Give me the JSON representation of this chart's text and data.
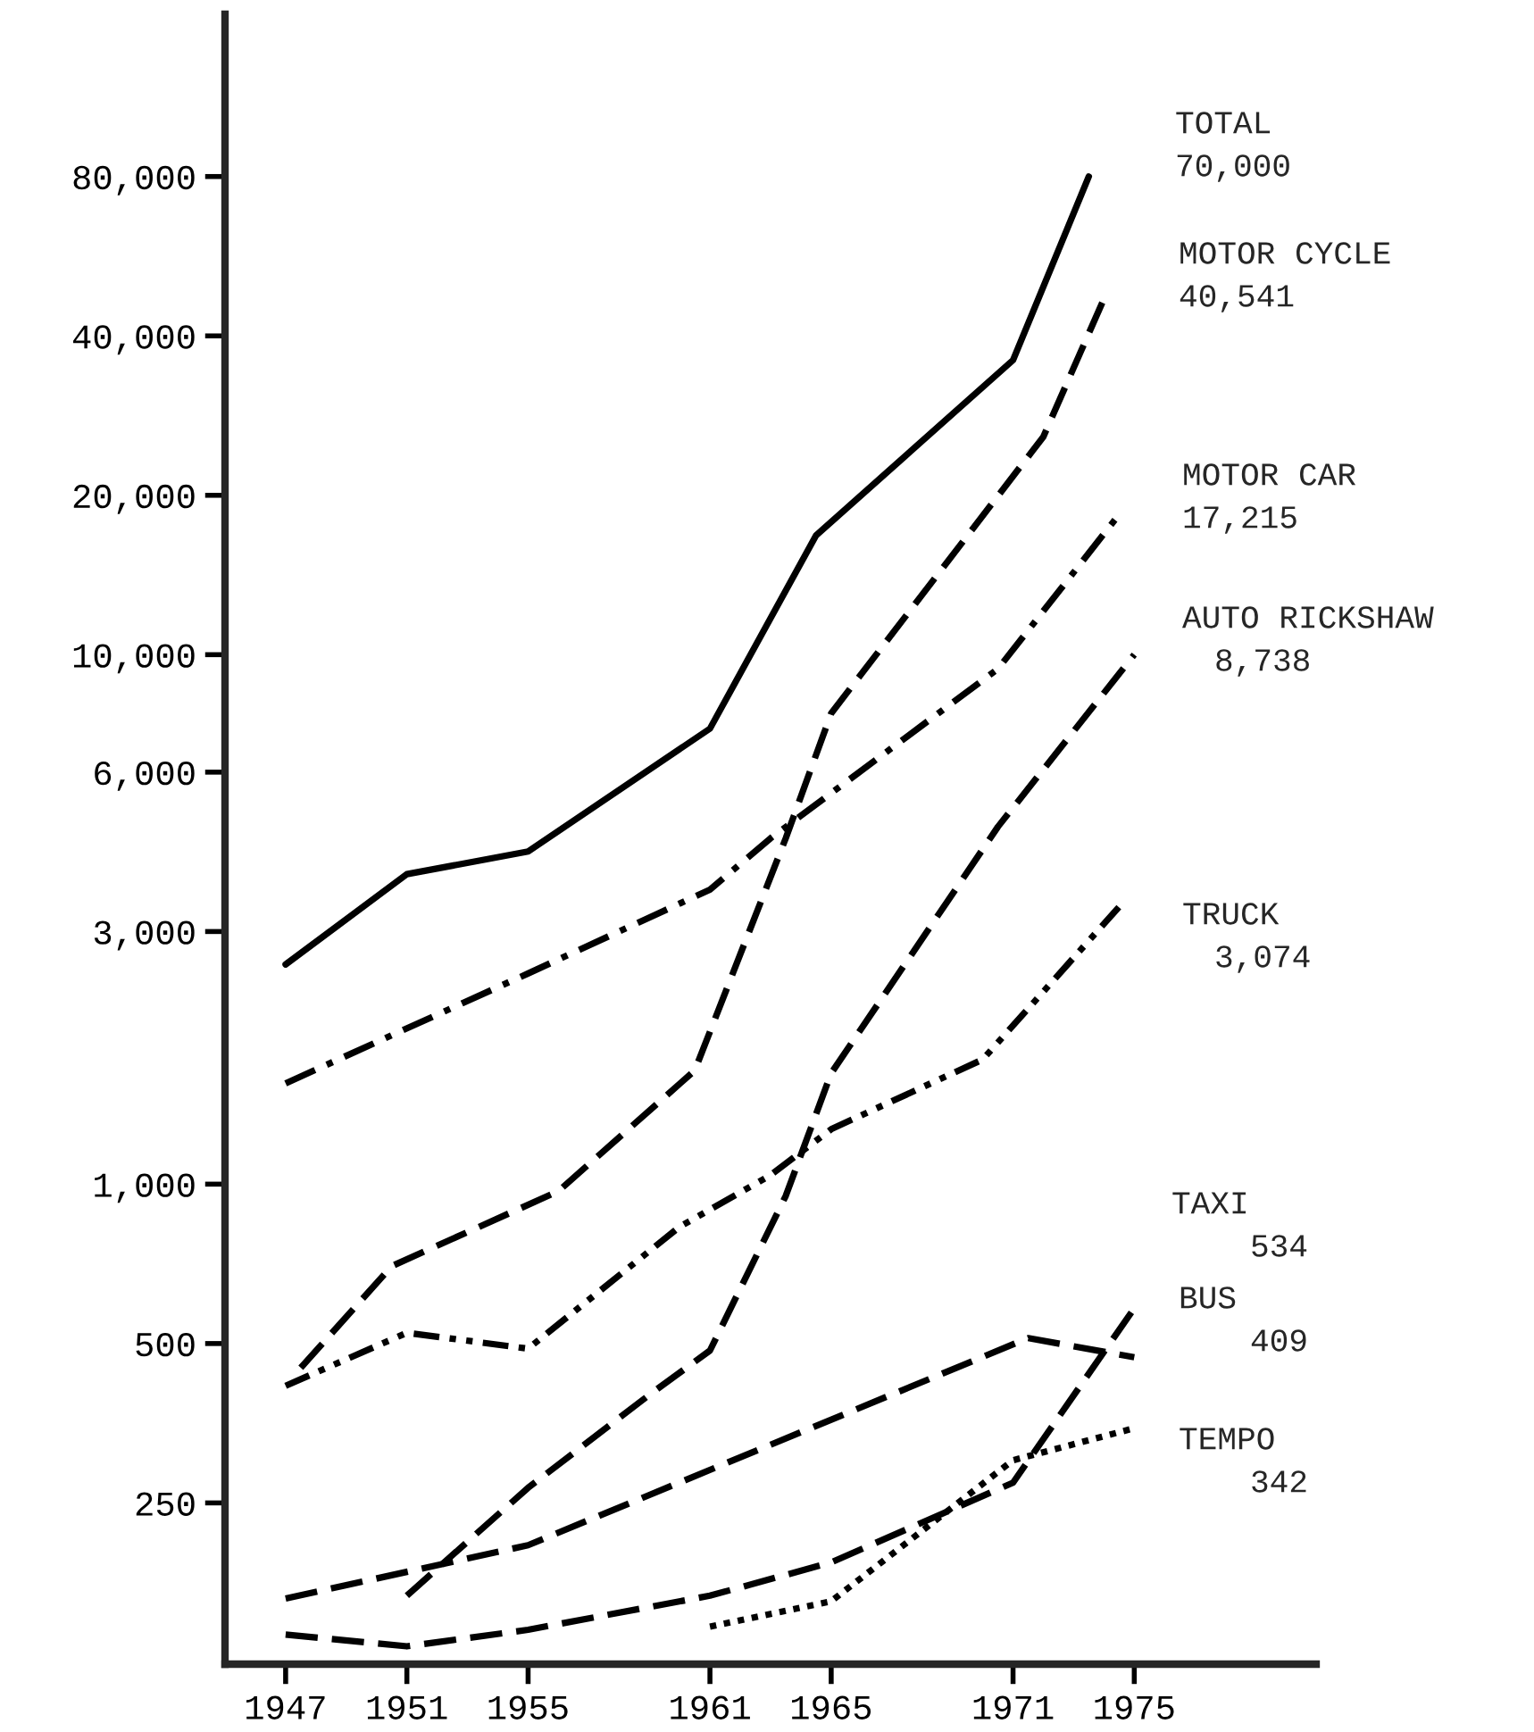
{
  "chart_data": {
    "type": "line",
    "log": "y",
    "xlim": [
      1945,
      1981
    ],
    "xticks": [
      1947,
      1951,
      1955,
      1961,
      1965,
      1971,
      1975
    ],
    "ylim": [
      124,
      162000
    ],
    "yticks": [
      {
        "value": 250,
        "label": "250"
      },
      {
        "value": 500,
        "label": "500"
      },
      {
        "value": 1000,
        "label": "1,000"
      },
      {
        "value": 3000,
        "label": "3,000"
      },
      {
        "value": 6000,
        "label": "6,000"
      },
      {
        "value": 10000,
        "label": "10,000"
      },
      {
        "value": 20000,
        "label": "20,000"
      },
      {
        "value": 40000,
        "label": "40,000"
      },
      {
        "value": 80000,
        "label": "80,000"
      }
    ],
    "series": [
      {
        "name": "TOTAL",
        "color": "#000000",
        "line_style": "solid",
        "x": [
          1947,
          1951,
          1955,
          1961,
          1964.5,
          1971,
          1973.5
        ],
        "values": [
          2600,
          3850,
          4250,
          7250,
          16800,
          36000,
          80000
        ]
      },
      {
        "name": "MOTOR CYCLE",
        "color": "#000000",
        "line_style": "dashed",
        "x": [
          1947.5,
          1950.5,
          1956,
          1960.5,
          1963.5,
          1965,
          1972,
          1974
        ],
        "values": [
          450,
          700,
          970,
          1640,
          4500,
          7750,
          25800,
          47000
        ]
      },
      {
        "name": "MOTOR CAR",
        "color": "#000000",
        "line_style": "dashdot",
        "x": [
          1947,
          1955,
          1961,
          1963,
          1970.5,
          1974.5
        ],
        "values": [
          1550,
          2500,
          3600,
          4500,
          9400,
          18400
        ]
      },
      {
        "name": "AUTO RICKSHAW",
        "color": "#000000",
        "line_style": "dashed",
        "x": [
          1951,
          1955,
          1959,
          1961,
          1963.5,
          1965,
          1970.5,
          1975
        ],
        "values": [
          167,
          267,
          400,
          485,
          950,
          1620,
          4730,
          10000
        ]
      },
      {
        "name": "TRUCK",
        "color": "#000000",
        "line_style": "dashdotdot",
        "x": [
          1947,
          1951,
          1955,
          1960,
          1963,
          1965,
          1970,
          1974.5
        ],
        "values": [
          416,
          524,
          489,
          831,
          1040,
          1270,
          1720,
          3340
        ]
      },
      {
        "name": "TAXI",
        "color": "#000000",
        "line_style": "dashed",
        "x": [
          1947,
          1951,
          1955,
          1961,
          1965,
          1971,
          1975
        ],
        "values": [
          141,
          134,
          144,
          167,
          193,
          273,
          583
        ]
      },
      {
        "name": "BUS",
        "color": "#000000",
        "line_style": "dashed",
        "x": [
          1947,
          1955,
          1971.5,
          1975
        ],
        "values": [
          165,
          208,
          512,
          471
        ]
      },
      {
        "name": "TEMPO",
        "color": "#000000",
        "line_style": "dotted",
        "x": [
          1961,
          1965,
          1971,
          1975
        ],
        "values": [
          146,
          163,
          301,
          346
        ]
      }
    ],
    "annotations": [
      "70,000",
      "40,541",
      "17,215",
      "8,738",
      "3,074",
      "534",
      "409",
      "342"
    ]
  }
}
